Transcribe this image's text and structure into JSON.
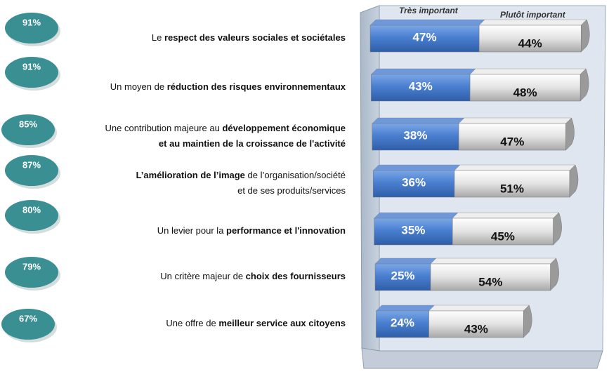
{
  "chart_data": {
    "type": "stacked-bar-horizontal",
    "categories": [
      [
        [
          {
            "text": "Le ",
            "bold": false
          },
          {
            "text": "respect des valeurs sociales et sociétales",
            "bold": true
          }
        ]
      ],
      [
        [
          {
            "text": "Un moyen de ",
            "bold": false
          },
          {
            "text": "réduction des risques environnementaux",
            "bold": true
          }
        ]
      ],
      [
        [
          {
            "text": "Une contribution majeure au ",
            "bold": false
          },
          {
            "text": "développement économique",
            "bold": true
          }
        ],
        [
          {
            "text": "et au maintien de la croissance de l'activité",
            "bold": true
          }
        ]
      ],
      [
        [
          {
            "text": "L’amélioration de l’image",
            "bold": true
          },
          {
            "text": " de l’organisation/société",
            "bold": false
          }
        ],
        [
          {
            "text": "et de ses produits/services",
            "bold": false
          }
        ]
      ],
      [
        [
          {
            "text": "Un levier pour la ",
            "bold": false
          },
          {
            "text": "performance et l'innovation",
            "bold": true
          }
        ]
      ],
      [
        [
          {
            "text": "Un critère majeur de ",
            "bold": false
          },
          {
            "text": "choix des fournisseurs",
            "bold": true
          }
        ]
      ],
      [
        [
          {
            "text": "Une offre de ",
            "bold": false
          },
          {
            "text": "meilleur service aux citoyens",
            "bold": true
          }
        ]
      ]
    ],
    "series": [
      {
        "name": "Très important",
        "color": "#4a7fd0",
        "values": [
          47,
          43,
          38,
          36,
          35,
          25,
          24
        ],
        "value_labels": [
          "47%",
          "43%",
          "38%",
          "36%",
          "35%",
          "25%",
          "24%"
        ]
      },
      {
        "name": "Plutôt important",
        "color": "#d9d9d9",
        "values": [
          44,
          48,
          47,
          51,
          45,
          54,
          43
        ],
        "value_labels": [
          "44%",
          "48%",
          "47%",
          "51%",
          "45%",
          "54%",
          "43%"
        ]
      }
    ],
    "totals": [
      91,
      91,
      85,
      87,
      80,
      79,
      67
    ],
    "total_labels": [
      "91%",
      "91%",
      "85%",
      "87%",
      "80%",
      "79%",
      "67%"
    ],
    "total_color": "#3a8f93"
  }
}
